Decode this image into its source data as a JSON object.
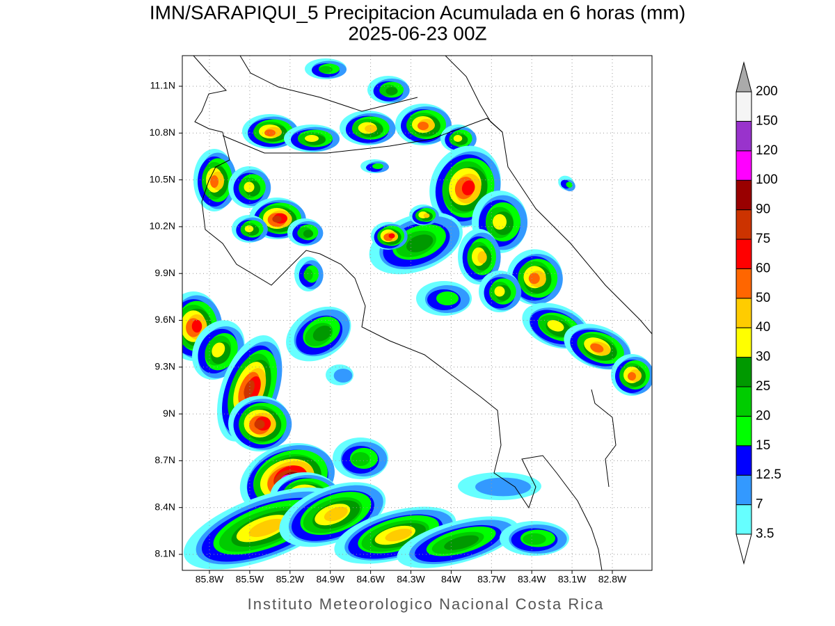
{
  "title": "IMN/SARAPIQUI_5 Precipitacion Acumulada en 6 horas (mm)",
  "subtitle": "2025-06-23 00Z",
  "lat_labels": [
    "11.1N",
    "10.8N",
    "10.5N",
    "10.2N",
    "9.9N",
    "9.6N",
    "9.3N",
    "9N",
    "8.7N",
    "8.4N",
    "8.1N"
  ],
  "lon_labels": [
    "85.8W",
    "85.5W",
    "85.2W",
    "84.9W",
    "84.6W",
    "84.3W",
    "84W",
    "83.7W",
    "83.4W",
    "83.1W",
    "82.8W"
  ],
  "colorbar": {
    "levels": [
      3.5,
      7,
      12.5,
      15,
      20,
      25,
      30,
      40,
      50,
      60,
      75,
      90,
      100,
      120,
      150,
      200
    ],
    "colors": [
      "#66ffff",
      "#3399ff",
      "#0000ff",
      "#00ff00",
      "#00cc00",
      "#009900",
      "#ffff00",
      "#ffcc00",
      "#ff6600",
      "#ff0000",
      "#cc3300",
      "#990000",
      "#ff00ff",
      "#9933cc",
      "#f5f5f5"
    ],
    "under_color": "#ffffff",
    "over_color": "#aaaaaa"
  },
  "footer": "Instituto Meteorologico Nacional Costa Rica"
}
